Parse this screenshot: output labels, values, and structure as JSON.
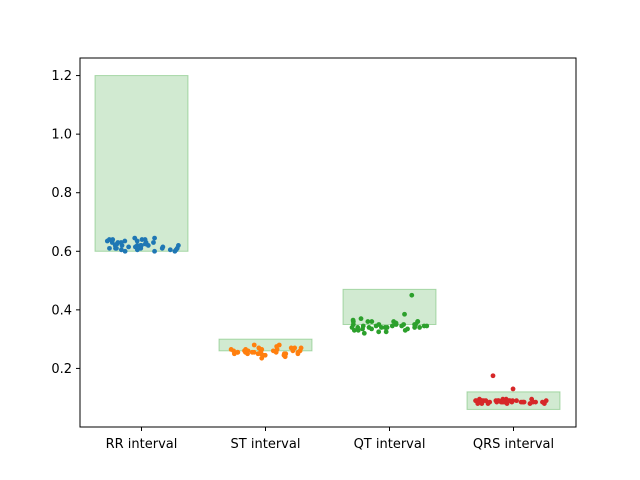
{
  "chart_data": {
    "type": "scatter",
    "categories": [
      "RR interval",
      "ST interval",
      "QT interval",
      "QRS interval"
    ],
    "ylim": [
      0.0,
      1.26
    ],
    "yticks": [
      0.2,
      0.4,
      0.6,
      0.8,
      1.0,
      1.2
    ],
    "ytick_labels": [
      "0.2",
      "0.4",
      "0.6",
      "0.8",
      "1.0",
      "1.2"
    ],
    "grid": false,
    "reference_ranges": [
      {
        "category": "RR interval",
        "low": 0.6,
        "high": 1.2
      },
      {
        "category": "ST interval",
        "low": 0.26,
        "high": 0.3
      },
      {
        "category": "QT interval",
        "low": 0.35,
        "high": 0.47
      },
      {
        "category": "QRS interval",
        "low": 0.06,
        "high": 0.12
      }
    ],
    "range_color": "#2ca02c",
    "series": [
      {
        "category": "RR interval",
        "color": "#1f77b4",
        "values": [
          0.61,
          0.625,
          0.63,
          0.62,
          0.635,
          0.64,
          0.61,
          0.605,
          0.62,
          0.645,
          0.6,
          0.615,
          0.63,
          0.64,
          0.62,
          0.605,
          0.645,
          0.61,
          0.63,
          0.62,
          0.625,
          0.635,
          0.6,
          0.61,
          0.64,
          0.62,
          0.605,
          0.63,
          0.615,
          0.625,
          0.6,
          0.635,
          0.61,
          0.62,
          0.605,
          0.63,
          0.64,
          0.615,
          0.62,
          0.61
        ]
      },
      {
        "category": "ST interval",
        "color": "#ff7f0e",
        "values": [
          0.28,
          0.255,
          0.26,
          0.25,
          0.265,
          0.27,
          0.245,
          0.255,
          0.26,
          0.25,
          0.24,
          0.265,
          0.255,
          0.26,
          0.235,
          0.25,
          0.265,
          0.27,
          0.28,
          0.275,
          0.26,
          0.255,
          0.25,
          0.245,
          0.26,
          0.27,
          0.265,
          0.255,
          0.25,
          0.26,
          0.245,
          0.255,
          0.26,
          0.25,
          0.265,
          0.27,
          0.255,
          0.26,
          0.25,
          0.255
        ]
      },
      {
        "category": "QT interval",
        "color": "#2ca02c",
        "values": [
          0.36,
          0.36,
          0.345,
          0.325,
          0.36,
          0.34,
          0.35,
          0.335,
          0.36,
          0.345,
          0.34,
          0.35,
          0.355,
          0.34,
          0.33,
          0.345,
          0.325,
          0.36,
          0.35,
          0.34,
          0.37,
          0.45,
          0.34,
          0.335,
          0.35,
          0.345,
          0.33,
          0.385,
          0.345,
          0.36,
          0.34,
          0.35,
          0.32,
          0.33,
          0.34,
          0.365,
          0.345,
          0.34,
          0.35,
          0.335
        ]
      },
      {
        "category": "QRS interval",
        "color": "#d62728",
        "values": [
          0.13,
          0.095,
          0.085,
          0.09,
          0.09,
          0.085,
          0.175,
          0.09,
          0.085,
          0.09,
          0.08,
          0.09,
          0.085,
          0.09,
          0.095,
          0.09,
          0.085,
          0.08,
          0.09,
          0.085,
          0.09,
          0.095,
          0.085,
          0.09,
          0.08,
          0.085,
          0.09,
          0.095,
          0.09,
          0.085,
          0.08,
          0.09,
          0.085,
          0.09,
          0.08,
          0.085,
          0.09,
          0.085,
          0.09,
          0.08
        ]
      }
    ]
  }
}
